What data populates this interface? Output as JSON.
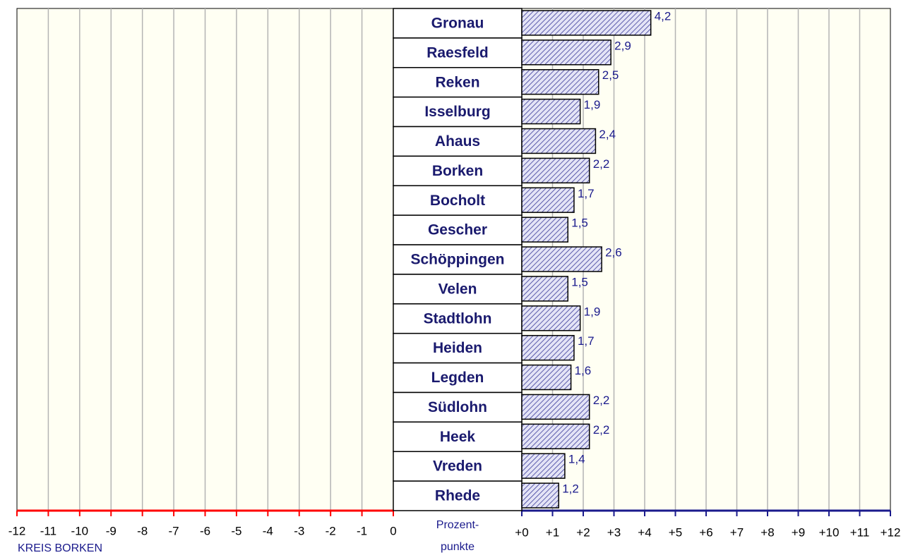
{
  "chart_data": {
    "type": "bar",
    "orientation": "horizontal",
    "categories": [
      "Gronau",
      "Raesfeld",
      "Reken",
      "Isselburg",
      "Ahaus",
      "Borken",
      "Bocholt",
      "Gescher",
      "Schöppingen",
      "Velen",
      "Stadtlohn",
      "Heiden",
      "Legden",
      "Südlohn",
      "Heek",
      "Vreden",
      "Rhede"
    ],
    "values": [
      4.2,
      2.9,
      2.5,
      1.9,
      2.4,
      2.2,
      1.7,
      1.5,
      2.6,
      1.5,
      1.9,
      1.7,
      1.6,
      2.2,
      2.2,
      1.4,
      1.2
    ],
    "value_labels": [
      "4,2",
      "2,9",
      "2,5",
      "1,9",
      "2,4",
      "2,2",
      "1,7",
      "1,5",
      "2,6",
      "1,5",
      "1,9",
      "1,7",
      "1,6",
      "2,2",
      "2,2",
      "1,4",
      "1,2"
    ],
    "color": "#1a1a8c",
    "xlim": [
      0,
      12
    ],
    "xticks": [
      {
        "value": 0,
        "label": "+0"
      },
      {
        "value": 1,
        "label": "+1"
      },
      {
        "value": 2,
        "label": "+2"
      },
      {
        "value": 3,
        "label": "+3"
      },
      {
        "value": 4,
        "label": "+4"
      },
      {
        "value": 5,
        "label": "+5"
      },
      {
        "value": 6,
        "label": "+6"
      },
      {
        "value": 7,
        "label": "+7"
      },
      {
        "value": 8,
        "label": "+8"
      },
      {
        "value": 9,
        "label": "+9"
      },
      {
        "value": 10,
        "label": "+10"
      },
      {
        "value": 11,
        "label": "+11"
      },
      {
        "value": 12,
        "label": "+12"
      }
    ],
    "left_axis": {
      "xlim": [
        -12,
        0
      ],
      "xticks": [
        -12,
        -11,
        -10,
        -9,
        -8,
        -7,
        -6,
        -5,
        -4,
        -3,
        -2,
        -1,
        0
      ],
      "label": "KREIS BORKEN",
      "color": "#ff0000"
    },
    "axis_color": "#1a1a8c",
    "x_label": [
      "Prozent-",
      "punkte"
    ],
    "grid": true
  }
}
